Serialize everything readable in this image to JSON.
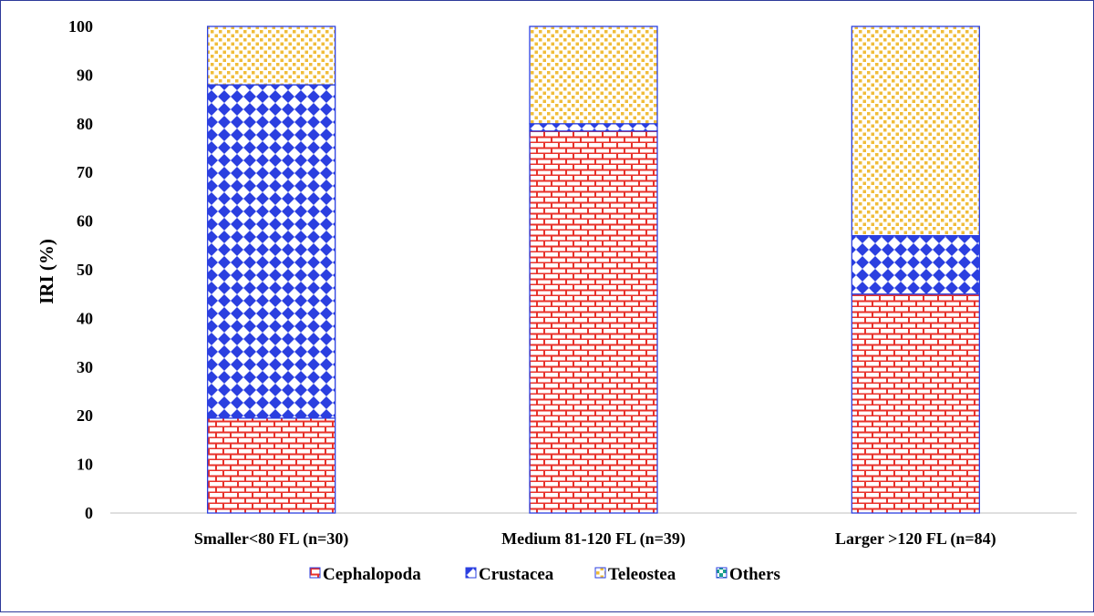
{
  "chart_data": {
    "type": "bar",
    "stacked": true,
    "title": "",
    "xlabel": "",
    "ylabel": "IRI (%)",
    "ylim": [
      0,
      100
    ],
    "yticks": [
      0,
      10,
      20,
      30,
      40,
      50,
      60,
      70,
      80,
      90,
      100
    ],
    "grid": false,
    "legend_position": "bottom",
    "categories": [
      "Smaller<80 FL (n=30)",
      "Medium 81-120 FL (n=39)",
      "Larger >120 FL (n=84)"
    ],
    "series": [
      {
        "name": "Cephalopoda",
        "color": "#e8312a",
        "pattern": "brick",
        "values": [
          19.5,
          78.5,
          45
        ]
      },
      {
        "name": "Crustacea",
        "color": "#2b3fe0",
        "pattern": "diamond",
        "values": [
          68.5,
          1.5,
          12
        ]
      },
      {
        "name": "Teleostea",
        "color": "#f0bd3a",
        "pattern": "dots",
        "values": [
          12,
          20,
          43
        ]
      },
      {
        "name": "Others",
        "color": "#1a9e8e",
        "pattern": "checker",
        "values": [
          0,
          0,
          0
        ]
      }
    ]
  }
}
